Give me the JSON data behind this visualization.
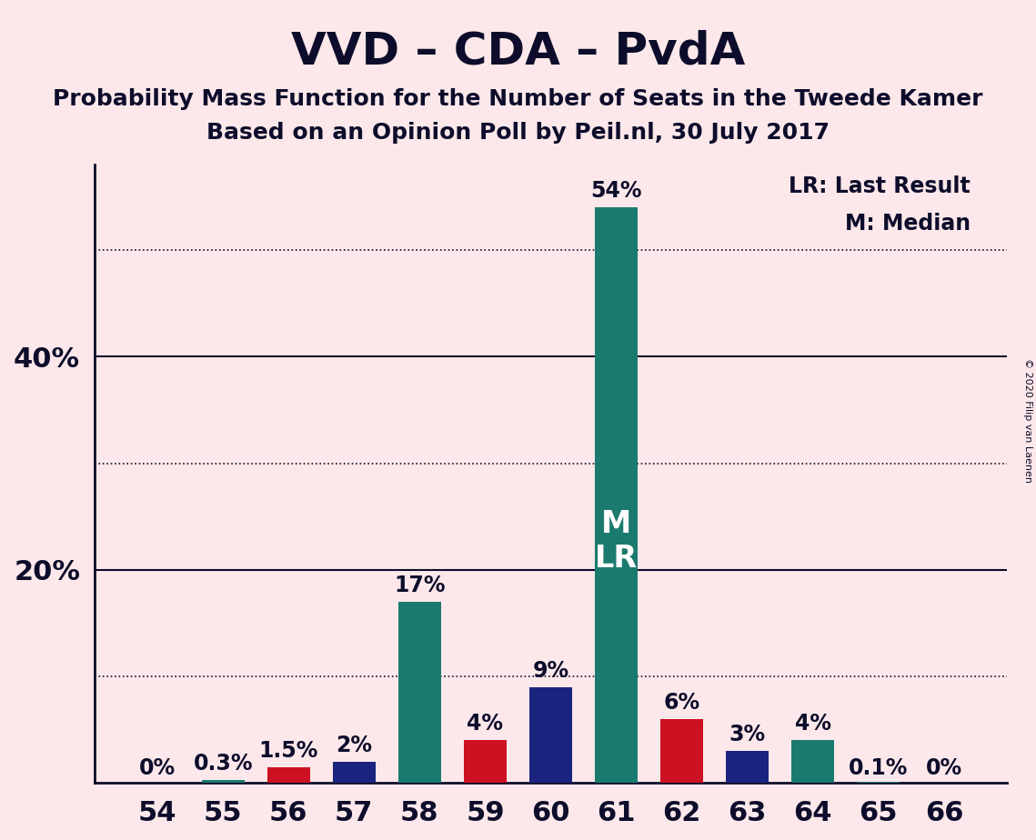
{
  "title": "VVD – CDA – PvdA",
  "subtitle1": "Probability Mass Function for the Number of Seats in the Tweede Kamer",
  "subtitle2": "Based on an Opinion Poll by Peil.nl, 30 July 2017",
  "copyright": "© 2020 Filip van Laenen",
  "legend_lr": "LR: Last Result",
  "legend_m": "M: Median",
  "categories": [
    54,
    55,
    56,
    57,
    58,
    59,
    60,
    61,
    62,
    63,
    64,
    65,
    66
  ],
  "values": [
    0.0,
    0.3,
    1.5,
    2.0,
    17.0,
    4.0,
    9.0,
    54.0,
    6.0,
    3.0,
    4.0,
    0.1,
    0.0
  ],
  "bar_colors": [
    "#1a7a6e",
    "#1a7a6e",
    "#cc1122",
    "#1a237e",
    "#1a7a6e",
    "#cc1122",
    "#1a237e",
    "#1a7a6e",
    "#cc1122",
    "#1a237e",
    "#1a7a6e",
    "#1a7a6e",
    "#1a7a6e"
  ],
  "labels": [
    "0%",
    "0.3%",
    "1.5%",
    "2%",
    "17%",
    "4%",
    "9%",
    "54%",
    "6%",
    "3%",
    "4%",
    "0.1%",
    "0%"
  ],
  "bar61_label_text": "M\nLR",
  "background_color": "#fce8ea",
  "text_color": "#0d0d2b",
  "ylim": [
    0,
    58
  ],
  "solid_lines": [
    20,
    40
  ],
  "dotted_lines": [
    10,
    30,
    50
  ],
  "ytick_positions": [
    20,
    40
  ],
  "ytick_labels": [
    "20%",
    "40%"
  ],
  "title_fontsize": 36,
  "subtitle_fontsize": 18,
  "bar_width": 0.65,
  "ylabel_fontsize": 22,
  "xlabel_fontsize": 22,
  "annotation_fontsize": 17,
  "bar61_text_fontsize": 24
}
